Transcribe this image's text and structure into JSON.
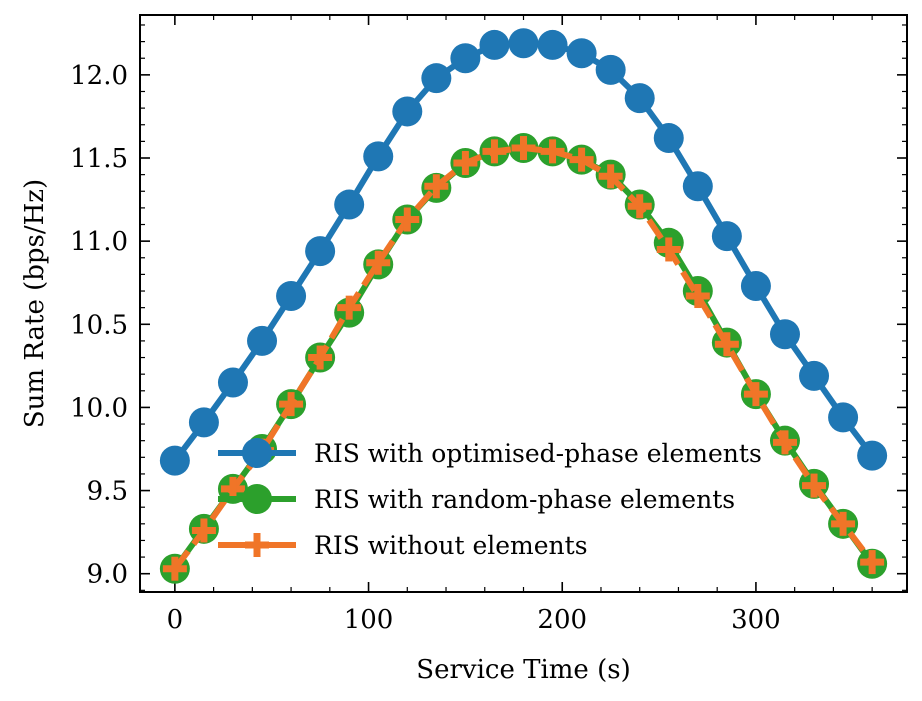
{
  "chart_data": {
    "type": "line",
    "title": "",
    "xlabel": "Service Time (s)",
    "ylabel": "Sum Rate (bps/Hz)",
    "xlim": [
      -18,
      378
    ],
    "ylim": [
      8.89,
      12.36
    ],
    "xticks": [
      0,
      100,
      200,
      300
    ],
    "xtick_labels": [
      "0",
      "100",
      "200",
      "300"
    ],
    "yticks": [
      9.0,
      9.5,
      10.0,
      10.5,
      11.0,
      11.5,
      12.0
    ],
    "ytick_labels": [
      "9.0",
      "9.5",
      "10.0",
      "10.5",
      "11.0",
      "11.5",
      "12.0"
    ],
    "legend_position": "lower-center",
    "grid": false,
    "x": [
      0,
      15,
      30,
      45,
      60,
      75,
      90,
      105,
      120,
      135,
      150,
      165,
      180,
      195,
      210,
      225,
      240,
      255,
      270,
      285,
      300,
      315,
      330,
      345,
      360
    ],
    "series": [
      {
        "name": "RIS with optimised-phase elements",
        "color": "#1f77b4",
        "marker": "circle",
        "line_style": "solid",
        "values": [
          9.68,
          9.91,
          10.15,
          10.4,
          10.67,
          10.94,
          11.22,
          11.51,
          11.78,
          11.98,
          12.1,
          12.18,
          12.19,
          12.18,
          12.13,
          12.03,
          11.86,
          11.62,
          11.33,
          11.03,
          10.73,
          10.44,
          10.19,
          9.94,
          9.71
        ]
      },
      {
        "name": "RIS with random-phase elements",
        "color": "#2ca02c",
        "marker": "circle",
        "line_style": "solid",
        "values": [
          9.03,
          9.27,
          9.51,
          9.75,
          10.02,
          10.3,
          10.57,
          10.86,
          11.13,
          11.32,
          11.47,
          11.54,
          11.56,
          11.54,
          11.49,
          11.4,
          11.22,
          10.99,
          10.7,
          10.39,
          10.08,
          9.8,
          9.54,
          9.3,
          9.06
        ]
      },
      {
        "name": "RIS without elements",
        "color": "#f07528",
        "marker": "plus",
        "line_style": "dashed",
        "values": [
          9.03,
          9.26,
          9.51,
          9.74,
          10.02,
          10.3,
          10.6,
          10.87,
          11.13,
          11.33,
          11.47,
          11.54,
          11.56,
          11.54,
          11.49,
          11.39,
          11.21,
          10.95,
          10.67,
          10.38,
          10.08,
          9.79,
          9.53,
          9.3,
          9.07
        ]
      }
    ]
  }
}
